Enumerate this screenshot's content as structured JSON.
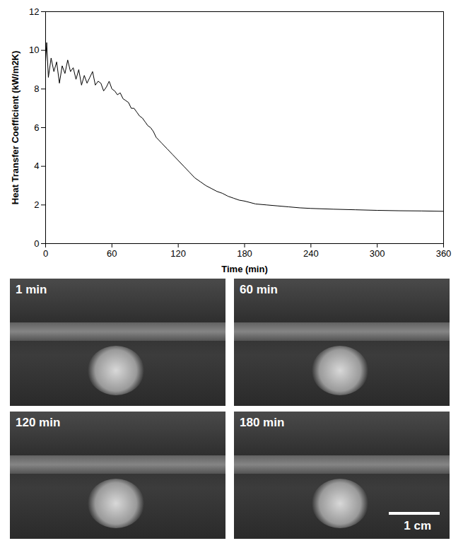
{
  "chart_data": {
    "type": "line",
    "x_label": "Time (min)",
    "y_label": "Heat Transfer Coefficient (kW/m2K)",
    "x": [
      0,
      1,
      2.5,
      5,
      7.5,
      10,
      12.5,
      15,
      17.5,
      20,
      22.5,
      25,
      27.5,
      30,
      32.5,
      35,
      37.5,
      40,
      42.5,
      45,
      47.5,
      50,
      52.5,
      55,
      57.5,
      60,
      62.5,
      65,
      67.5,
      70,
      72.5,
      75,
      77.5,
      80,
      82.5,
      85,
      87.5,
      90,
      92.5,
      95,
      97.5,
      100,
      105,
      110,
      115,
      120,
      125,
      130,
      135,
      140,
      145,
      150,
      155,
      160,
      165,
      170,
      175,
      180,
      190,
      200,
      210,
      220,
      230,
      240,
      260,
      280,
      300,
      320,
      340,
      360
    ],
    "series": [
      {
        "name": "Heat Transfer Coefficient",
        "color": "#000000",
        "values": [
          9.4,
          10.4,
          8.6,
          9.6,
          8.9,
          9.4,
          8.3,
          9.2,
          8.8,
          9.5,
          8.9,
          9.1,
          8.5,
          9.0,
          8.2,
          8.7,
          8.3,
          8.6,
          8.9,
          8.2,
          8.4,
          8.3,
          7.9,
          8.1,
          8.4,
          8.0,
          7.9,
          7.7,
          7.8,
          7.5,
          7.4,
          7.3,
          7.0,
          7.0,
          6.8,
          6.6,
          6.5,
          6.3,
          6.1,
          6.0,
          5.8,
          5.5,
          5.2,
          4.9,
          4.6,
          4.3,
          4.0,
          3.7,
          3.4,
          3.2,
          3.0,
          2.85,
          2.7,
          2.6,
          2.45,
          2.35,
          2.25,
          2.2,
          2.05,
          2.0,
          1.95,
          1.9,
          1.85,
          1.82,
          1.78,
          1.75,
          1.72,
          1.7,
          1.69,
          1.67
        ]
      }
    ],
    "xlim": [
      0,
      360
    ],
    "xticks": [
      0,
      60,
      120,
      180,
      240,
      300,
      360
    ],
    "ylim": [
      0,
      12
    ],
    "yticks": [
      0,
      2,
      4,
      6,
      8,
      10,
      12
    ],
    "grid": false
  },
  "photos": {
    "panels": [
      "1 min",
      "60 min",
      "120 min",
      "180 min"
    ],
    "scale_bar": "1 cm"
  }
}
